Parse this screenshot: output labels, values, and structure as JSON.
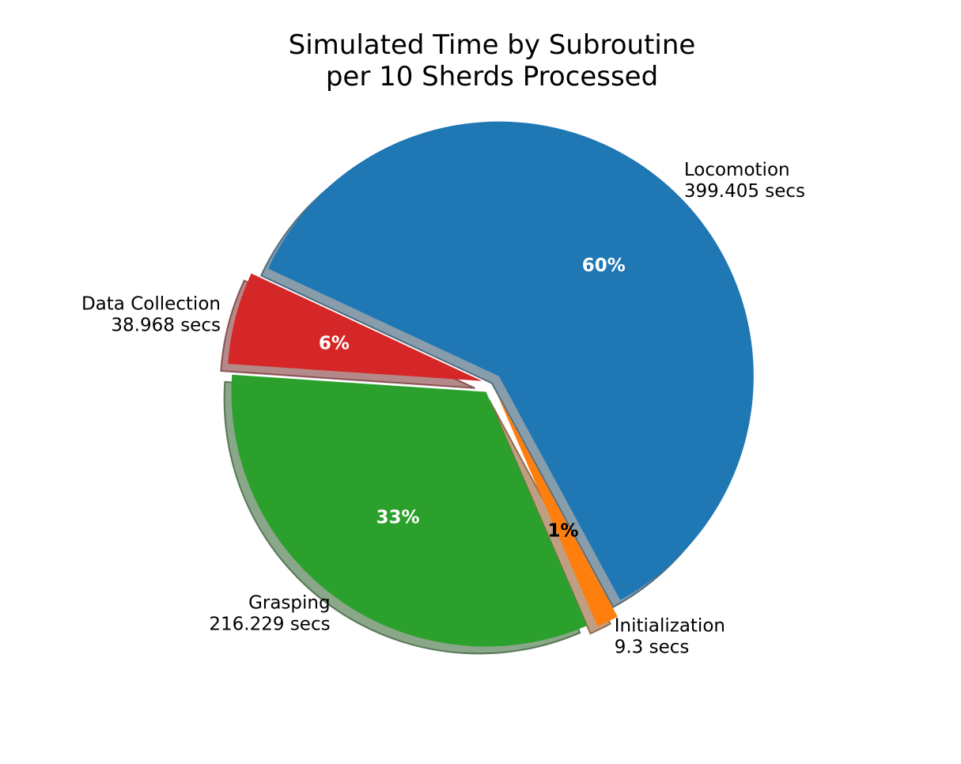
{
  "chart_data": {
    "type": "pie",
    "title_lines": [
      "Simulated Time by Subroutine",
      "per 10 Sherds Processed"
    ],
    "slices": [
      {
        "name": "Locomotion",
        "value_label": "399.405 secs",
        "value": 399.405,
        "pct_label": "60%",
        "color": "#1f77b4",
        "pct_color": "#ffffff",
        "exploded": true
      },
      {
        "name": "Initialization",
        "value_label": "9.3 secs",
        "value": 9.3,
        "pct_label": "1%",
        "color": "#ff7f0e",
        "pct_color": "#000000",
        "exploded": true
      },
      {
        "name": "Grasping",
        "value_label": "216.229 secs",
        "value": 216.229,
        "pct_label": "33%",
        "color": "#2ca02c",
        "pct_color": "#ffffff",
        "exploded": true
      },
      {
        "name": "Data Collection",
        "value_label": "38.968 secs",
        "value": 38.968,
        "pct_label": "6%",
        "color": "#d62728",
        "pct_color": "#ffffff",
        "exploded": true
      }
    ],
    "shadow": true,
    "start_angle_deg": 155,
    "direction": "clockwise"
  }
}
